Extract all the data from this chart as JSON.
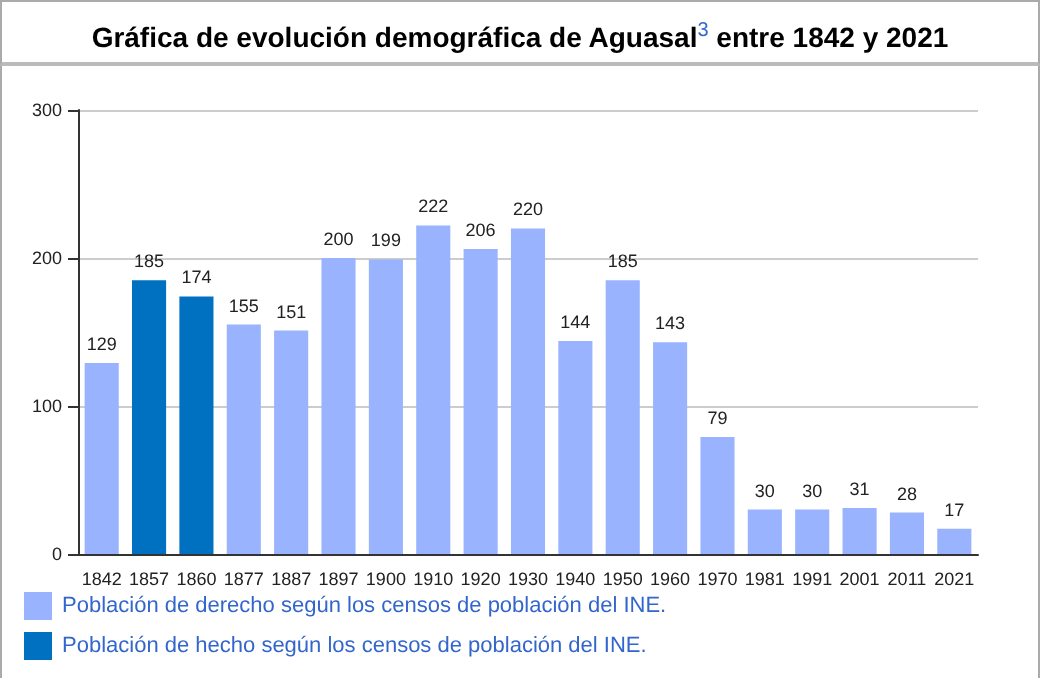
{
  "chart_data": {
    "type": "bar",
    "title": "Gráfica de evolución demográfica de Aguasal$^{3}$ entre 1842 y 2021",
    "categories": [
      "1842",
      "1857",
      "1860",
      "1877",
      "1887",
      "1897",
      "1900",
      "1910",
      "1920",
      "1930",
      "1940",
      "1950",
      "1960",
      "1970",
      "1981",
      "1991",
      "2001",
      "2011",
      "2021"
    ],
    "series": [
      {
        "name": "Población de derecho según los censos de población del INE.",
        "color": "#99b3ff",
        "values": [
          129,
          null,
          null,
          155,
          151,
          200,
          199,
          222,
          206,
          220,
          144,
          185,
          143,
          79,
          30,
          30,
          31,
          28,
          17
        ]
      },
      {
        "name": "Población de hecho según los censos de población del INE.",
        "color": "#0070c0",
        "values": [
          null,
          185,
          174,
          null,
          null,
          null,
          null,
          null,
          null,
          null,
          null,
          null,
          null,
          null,
          null,
          null,
          null,
          null,
          null
        ]
      }
    ],
    "stacked": true,
    "ylim": [
      0,
      300
    ],
    "yticks": [
      0,
      100,
      200,
      300
    ],
    "grid": "y",
    "legend": "bottom",
    "data_labels": true
  }
}
